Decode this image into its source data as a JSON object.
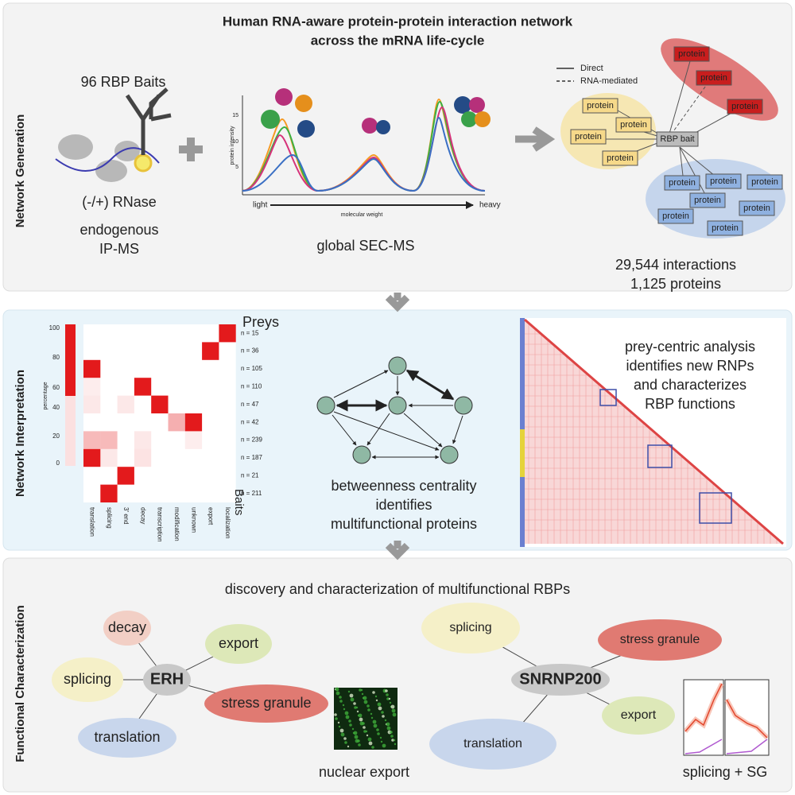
{
  "title": [
    "Human RNA-aware protein-protein interaction network",
    "across the mRNA life-cycle"
  ],
  "generation": {
    "label": "Network Generation",
    "baits": "96 RBP Baits",
    "rnase": "(-/+) RNase",
    "ipms": [
      "endogenous",
      "IP-MS"
    ],
    "sec": {
      "y_label": "protein intensity",
      "yticks": [
        "5",
        "10",
        "15"
      ],
      "x_left": "light",
      "x_mid": "molecular weight",
      "x_right": "heavy",
      "caption": "global SEC-MS"
    },
    "legend": [
      "Direct",
      "RNA-mediated"
    ],
    "network": {
      "bait": "RBP bait",
      "red": [
        "protein",
        "protein",
        "protein"
      ],
      "yellow": [
        "protein",
        "protein",
        "protein",
        "protein"
      ],
      "blue": [
        "protein",
        "protein",
        "protein",
        "protein",
        "protein",
        "protein",
        "protein"
      ]
    },
    "stats": [
      "29,544 interactions",
      "1,125 proteins"
    ]
  },
  "interpretation": {
    "label": "Network Interpretation",
    "y_label": "percentage",
    "yticks": [
      "0",
      "20",
      "40",
      "60",
      "80",
      "100"
    ],
    "preys": "Preys",
    "n": [
      "n = 15",
      "n = 36",
      "n = 105",
      "n = 110",
      "n = 47",
      "n = 42",
      "n = 239",
      "n = 187",
      "n = 21",
      "n = 211"
    ],
    "baits": "Baits",
    "categories": [
      "translation",
      "splicing",
      "3' end",
      "decay",
      "transcription",
      "modification",
      "unknown",
      "export",
      "localization"
    ],
    "centrality": [
      "betweenness centrality",
      "identifies",
      "multifunctional proteins"
    ],
    "prey": [
      "prey-centric analysis",
      "identifies new RNPs",
      "and characterizes",
      "RBP functions"
    ]
  },
  "characterization": {
    "label": "Functional Characterization",
    "heading": "discovery and characterization of multifunctional RBPs",
    "erh": {
      "center": "ERH",
      "nodes": [
        "decay",
        "export",
        "splicing",
        "stress granule",
        "translation"
      ],
      "caption": "nuclear export"
    },
    "snrnp": {
      "center": "SNRNP200",
      "nodes": [
        "splicing",
        "stress granule",
        "export",
        "translation"
      ],
      "caption": "splicing + SG"
    }
  }
}
